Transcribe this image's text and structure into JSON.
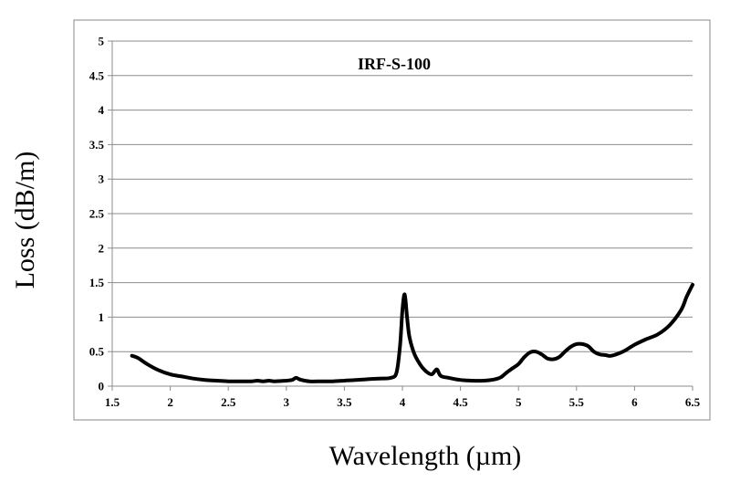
{
  "chart_data": {
    "type": "line",
    "title": "IRF-S-100",
    "xlabel": "Wavelength (µm)",
    "ylabel": "Loss (dB/m)",
    "xlim": [
      1.5,
      6.5
    ],
    "ylim": [
      0,
      5
    ],
    "x_ticks": [
      "1.5",
      "2",
      "2.5",
      "3",
      "3.5",
      "4",
      "4.5",
      "5",
      "5.5",
      "6",
      "6.5"
    ],
    "y_ticks": [
      "0",
      "0.5",
      "1",
      "1.5",
      "2",
      "2.5",
      "3",
      "3.5",
      "4",
      "4.5",
      "5"
    ],
    "grid": "horizontal",
    "line_color": "#000000",
    "series": [
      {
        "x": [
          1.67,
          1.72,
          1.8,
          1.9,
          2.0,
          2.1,
          2.2,
          2.3,
          2.4,
          2.5,
          2.6,
          2.7,
          2.75,
          2.8,
          2.85,
          2.9,
          3.0,
          3.05,
          3.08,
          3.1,
          3.13,
          3.2,
          3.3,
          3.4,
          3.5,
          3.6,
          3.7,
          3.8,
          3.9,
          3.95,
          3.98,
          4.0,
          4.02,
          4.04,
          4.06,
          4.1,
          4.15,
          4.2,
          4.25,
          4.28,
          4.3,
          4.33,
          4.4,
          4.5,
          4.6,
          4.7,
          4.8,
          4.85,
          4.9,
          4.95,
          5.0,
          5.05,
          5.1,
          5.15,
          5.2,
          5.25,
          5.3,
          5.35,
          5.4,
          5.45,
          5.5,
          5.55,
          5.6,
          5.65,
          5.7,
          5.75,
          5.8,
          5.9,
          6.0,
          6.1,
          6.2,
          6.3,
          6.4,
          6.45,
          6.5
        ],
        "y": [
          0.44,
          0.41,
          0.32,
          0.23,
          0.17,
          0.14,
          0.11,
          0.09,
          0.08,
          0.07,
          0.07,
          0.07,
          0.08,
          0.07,
          0.08,
          0.07,
          0.08,
          0.09,
          0.12,
          0.11,
          0.09,
          0.07,
          0.07,
          0.07,
          0.08,
          0.09,
          0.1,
          0.11,
          0.12,
          0.2,
          0.6,
          1.1,
          1.33,
          1.0,
          0.72,
          0.48,
          0.32,
          0.22,
          0.17,
          0.22,
          0.24,
          0.15,
          0.12,
          0.09,
          0.08,
          0.08,
          0.1,
          0.13,
          0.2,
          0.26,
          0.32,
          0.42,
          0.49,
          0.5,
          0.46,
          0.4,
          0.39,
          0.42,
          0.5,
          0.57,
          0.61,
          0.61,
          0.58,
          0.5,
          0.46,
          0.45,
          0.44,
          0.5,
          0.6,
          0.68,
          0.75,
          0.88,
          1.1,
          1.3,
          1.47
        ]
      }
    ]
  }
}
